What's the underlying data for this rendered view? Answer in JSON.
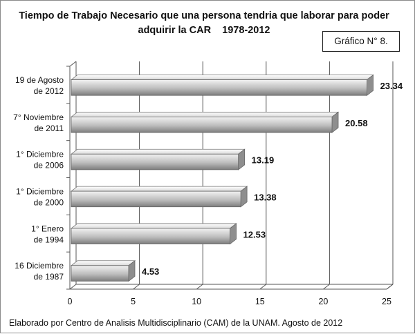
{
  "title_lines": [
    "Tiempo de Trabajo Necesario que una persona tendria que laborar para poder",
    "adquirir la CAR    1978-2012"
  ],
  "figure_label": "Gráfico N° 8.",
  "footer": "Elaborado por Centro de Analisis Multidisciplinario (CAM) de la UNAM. Agosto de 2012",
  "colors": {
    "bar_light": "#f2f2f2",
    "bar_mid": "#bdbdbd",
    "bar_dark": "#7d7d7d",
    "grid": "#555555"
  },
  "chart_data": {
    "type": "bar",
    "orientation": "horizontal",
    "style": "3d",
    "categories": [
      [
        "19 de Agosto",
        "de 2012"
      ],
      [
        "7° Noviembre",
        "de 2011"
      ],
      [
        "1° Diciembre",
        "de 2006"
      ],
      [
        "1° Diciembre",
        "de 2000"
      ],
      [
        "1° Enero",
        "de 1994"
      ],
      [
        "16 Diciembre",
        "de 1987"
      ]
    ],
    "values": [
      23.34,
      20.58,
      13.19,
      13.38,
      12.53,
      4.53
    ],
    "value_labels": [
      "23.34",
      "20.58",
      "13.19",
      "13.38",
      "12.53",
      "4.53"
    ],
    "xlim": [
      0,
      25
    ],
    "xticks": [
      "0",
      "5",
      "10",
      "15",
      "20",
      "25"
    ],
    "grid": true
  }
}
